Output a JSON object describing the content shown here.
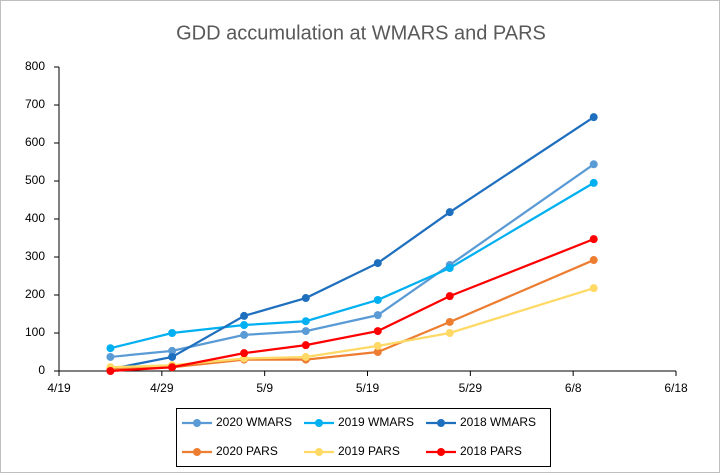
{
  "chart_data": {
    "type": "line",
    "title": "GDD accumulation at WMARS and PARS",
    "x": [
      "4/24",
      "4/30",
      "5/7",
      "5/13",
      "5/20",
      "5/27",
      "6/10"
    ],
    "xlim": [
      "4/19",
      "6/18"
    ],
    "xticks": [
      "4/19",
      "4/29",
      "5/9",
      "5/19",
      "5/29",
      "6/8",
      "6/18"
    ],
    "ylim": [
      0,
      800
    ],
    "yticks": [
      0,
      100,
      200,
      300,
      400,
      500,
      600,
      700,
      800
    ],
    "grid": false,
    "legend": "bottom",
    "series": [
      {
        "name": "2020 WMARS",
        "color": "#5b9bd5",
        "values": [
          37,
          53,
          95,
          105,
          147,
          279,
          544
        ]
      },
      {
        "name": "2019 WMARS",
        "color": "#00b0f0",
        "values": [
          60,
          100,
          121,
          131,
          187,
          271,
          495
        ]
      },
      {
        "name": "2018 WMARS",
        "color": "#1f6fbf",
        "values": [
          5,
          37,
          145,
          192,
          284,
          418,
          668
        ]
      },
      {
        "name": "2020 PARS",
        "color": "#ed7d31",
        "values": [
          5,
          10,
          30,
          30,
          50,
          129,
          292
        ]
      },
      {
        "name": "2019 PARS",
        "color": "#ffd966",
        "values": [
          10,
          15,
          33,
          37,
          66,
          100,
          218
        ]
      },
      {
        "name": "2018 PARS",
        "color": "#ff0000",
        "values": [
          0,
          10,
          47,
          68,
          105,
          197,
          347
        ]
      }
    ]
  }
}
